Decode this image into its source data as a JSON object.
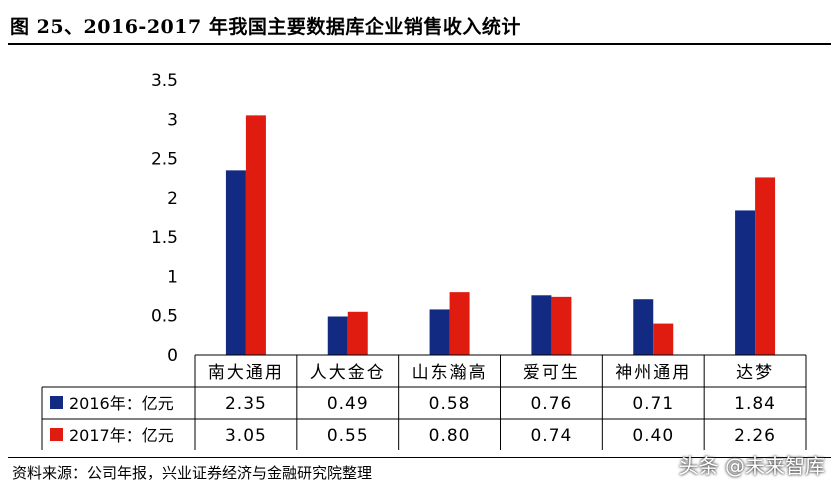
{
  "title": "图 25、2016-2017 年我国主要数据库企业销售收入统计",
  "source": "资料来源：公司年报，兴业证券经济与金融研究院整理",
  "watermark": "头条 @未来智库",
  "colors": {
    "series_2016": "#132a83",
    "series_2017": "#e01c10",
    "grid": "#000000"
  },
  "chart_data": {
    "type": "bar",
    "categories": [
      "南大通用",
      "人大金仓",
      "山东瀚高",
      "爱可生",
      "神州通用",
      "达梦"
    ],
    "series": [
      {
        "name": "2016年：亿元",
        "values": [
          2.35,
          0.49,
          0.58,
          0.76,
          0.71,
          1.84
        ],
        "labels": [
          "2.35",
          "0.49",
          "0.58",
          "0.76",
          "0.71",
          "1.84"
        ]
      },
      {
        "name": "2017年：亿元",
        "values": [
          3.05,
          0.55,
          0.8,
          0.74,
          0.4,
          2.26
        ],
        "labels": [
          "3.05",
          "0.55",
          "0.80",
          "0.74",
          "0.40",
          "2.26"
        ]
      }
    ],
    "yticks": [
      "0",
      "0.5",
      "1",
      "1.5",
      "2",
      "2.5",
      "3",
      "3.5"
    ],
    "ylim": [
      0,
      3.5
    ],
    "legend": "data-table",
    "grid": false
  }
}
